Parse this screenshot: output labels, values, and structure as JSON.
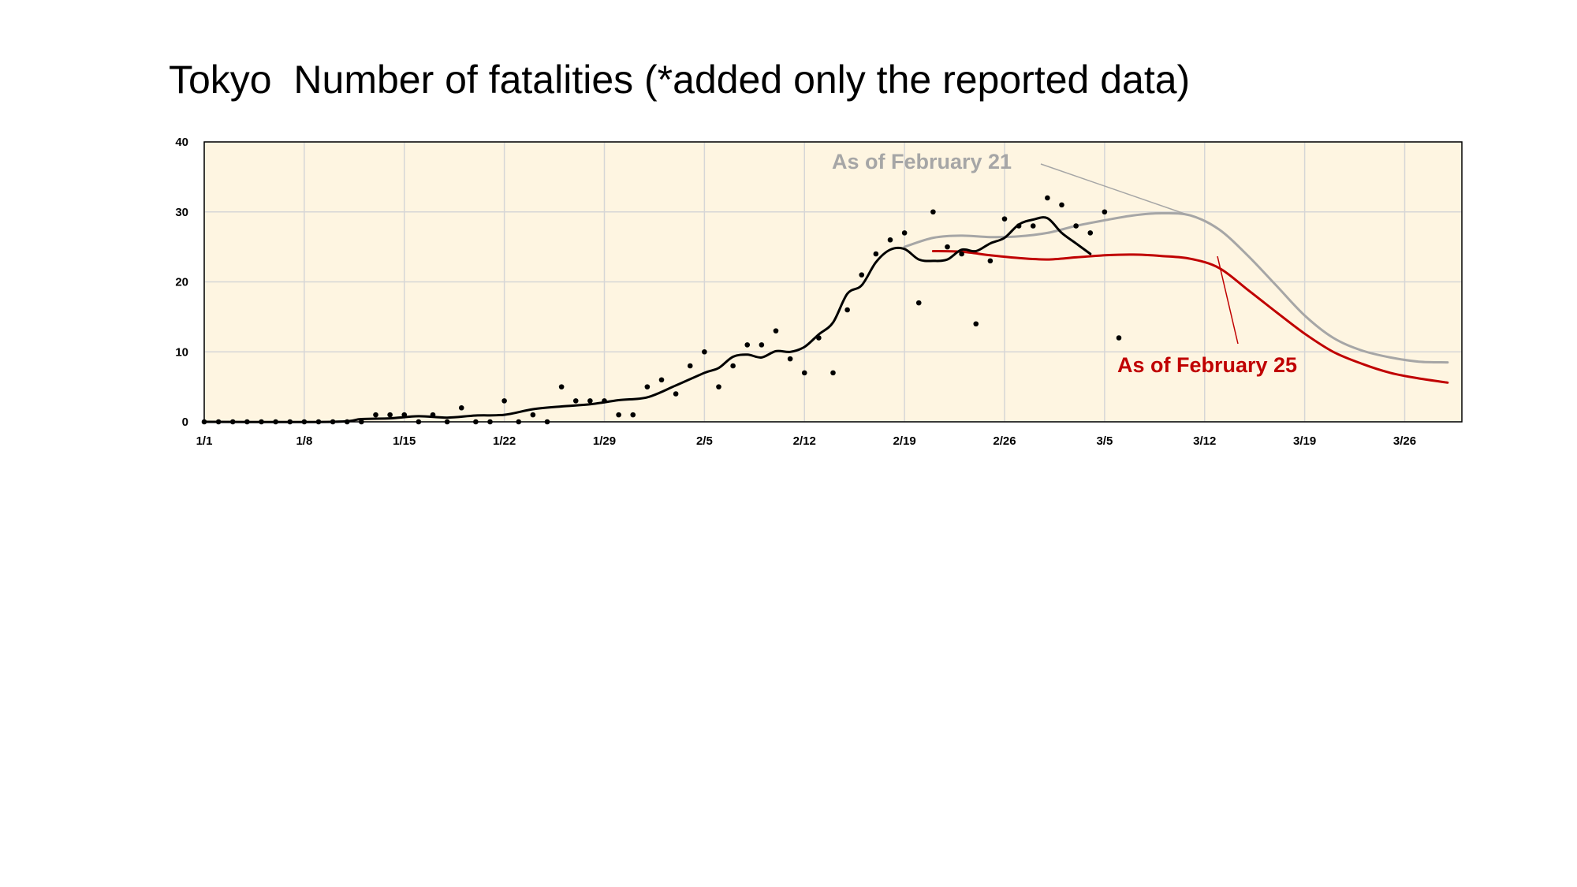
{
  "title": "Tokyo  Number of fatalities (*added only the reported data)",
  "colors": {
    "plot_background": "#FEF5E1",
    "grid": "#D6D6D6",
    "reported": "#000000",
    "feb21": "#A6A6A6",
    "feb25": "#C00000"
  },
  "chart_data": {
    "type": "line",
    "title": "Tokyo  Number of fatalities (*added only the reported data)",
    "xlabel": "",
    "ylabel": "",
    "x_unit": "day index (0 = 1/1)",
    "xlim": [
      0,
      88
    ],
    "ylim": [
      0,
      40
    ],
    "grid": true,
    "x_ticks": [
      {
        "day": 0,
        "label": "1/1"
      },
      {
        "day": 7,
        "label": "1/8"
      },
      {
        "day": 14,
        "label": "1/15"
      },
      {
        "day": 21,
        "label": "1/22"
      },
      {
        "day": 28,
        "label": "1/29"
      },
      {
        "day": 35,
        "label": "2/5"
      },
      {
        "day": 42,
        "label": "2/12"
      },
      {
        "day": 49,
        "label": "2/19"
      },
      {
        "day": 56,
        "label": "2/26"
      },
      {
        "day": 63,
        "label": "3/5"
      },
      {
        "day": 70,
        "label": "3/12"
      },
      {
        "day": 77,
        "label": "3/19"
      },
      {
        "day": 84,
        "label": "3/26"
      }
    ],
    "y_ticks": [
      0,
      10,
      20,
      30,
      40
    ],
    "daily_points": {
      "x": [
        0,
        1,
        2,
        3,
        4,
        5,
        6,
        7,
        8,
        9,
        10,
        11,
        12,
        13,
        14,
        15,
        16,
        17,
        18,
        19,
        20,
        21,
        22,
        23,
        24,
        25,
        26,
        27,
        28,
        29,
        30,
        31,
        32,
        33,
        34,
        35,
        36,
        37,
        38,
        39,
        40,
        41,
        42,
        43,
        44,
        45,
        46,
        47,
        48,
        49,
        50,
        51,
        52,
        53,
        54,
        55,
        56,
        57,
        58,
        59,
        60,
        61,
        62,
        63,
        64
      ],
      "y": [
        0,
        0,
        0,
        0,
        0,
        0,
        0,
        0,
        0,
        0,
        0,
        0,
        1,
        1,
        1,
        0,
        1,
        0,
        2,
        0,
        0,
        3,
        0,
        1,
        0,
        5,
        3,
        3,
        3,
        1,
        1,
        5,
        6,
        4,
        8,
        10,
        5,
        8,
        11,
        11,
        13,
        9,
        7,
        12,
        7,
        16,
        21,
        24,
        26,
        27,
        17,
        30,
        25,
        24,
        14,
        23,
        29,
        28,
        28,
        32,
        31,
        28,
        27,
        30,
        12
      ]
    },
    "series": [
      {
        "x": [
          0,
          9,
          11,
          13,
          15,
          17,
          19,
          21,
          23,
          25,
          27,
          29,
          31,
          33,
          35,
          36,
          37,
          38,
          39,
          40,
          41,
          42,
          43,
          44,
          45,
          46,
          47,
          48,
          49,
          50,
          51,
          52,
          53,
          54,
          55,
          56,
          57,
          58,
          59,
          60,
          61,
          62
        ],
        "y": [
          0,
          0,
          0.4,
          0.5,
          0.8,
          0.6,
          0.9,
          1.0,
          1.8,
          2.2,
          2.5,
          3.1,
          3.5,
          5.2,
          7.0,
          7.7,
          9.3,
          9.6,
          9.2,
          10.1,
          10.0,
          10.7,
          12.5,
          14.2,
          18.3,
          19.5,
          22.8,
          24.6,
          24.7,
          23.2,
          23.0,
          23.2,
          24.6,
          24.4,
          25.5,
          26.3,
          28.2,
          28.9,
          29.1,
          27.0,
          25.5,
          24.0
        ]
      },
      {
        "name": "As of February 21",
        "x": [
          49,
          51,
          53,
          55,
          57,
          59,
          61,
          63,
          65,
          67,
          69,
          71,
          73,
          75,
          77,
          79,
          81,
          83,
          85,
          87
        ],
        "y": [
          25.0,
          26.3,
          26.6,
          26.4,
          26.5,
          27.0,
          28.0,
          28.8,
          29.5,
          29.8,
          29.5,
          27.5,
          23.8,
          19.5,
          15.2,
          12.0,
          10.2,
          9.2,
          8.6,
          8.5
        ]
      },
      {
        "name": "As of February 25",
        "x": [
          51,
          53,
          55,
          57,
          59,
          61,
          63,
          65,
          67,
          69,
          71,
          73,
          75,
          77,
          79,
          81,
          83,
          85,
          87
        ],
        "y": [
          24.4,
          24.3,
          23.8,
          23.4,
          23.2,
          23.5,
          23.8,
          23.9,
          23.7,
          23.3,
          22.0,
          18.9,
          15.7,
          12.6,
          10.0,
          8.3,
          7.0,
          6.2,
          5.6
        ]
      }
    ],
    "annotations": [
      {
        "text": "As of February 21",
        "series": "feb21"
      },
      {
        "text": "As of February 25",
        "series": "feb25"
      }
    ]
  }
}
